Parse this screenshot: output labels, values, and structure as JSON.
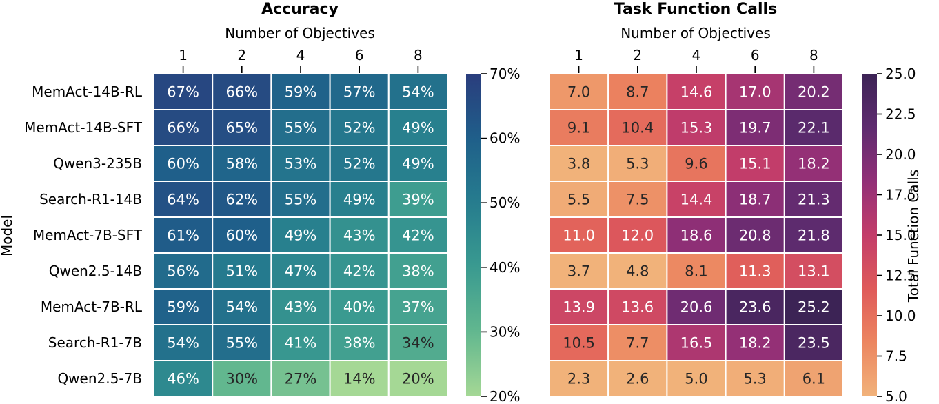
{
  "chart_data": [
    {
      "type": "heatmap",
      "title": "Accuracy",
      "xlabel": "Number of Objectives",
      "ylabel": "Model",
      "x": [
        "1",
        "2",
        "4",
        "6",
        "8"
      ],
      "rows": [
        "MemAct-14B-RL",
        "MemAct-14B-SFT",
        "Qwen3-235B",
        "Search-R1-14B",
        "MemAct-7B-SFT",
        "Qwen2.5-14B",
        "MemAct-7B-RL",
        "Search-R1-7B",
        "Qwen2.5-7B"
      ],
      "values": [
        [
          67,
          66,
          59,
          57,
          54
        ],
        [
          66,
          65,
          55,
          52,
          49
        ],
        [
          60,
          58,
          53,
          52,
          49
        ],
        [
          64,
          62,
          55,
          49,
          39
        ],
        [
          61,
          60,
          49,
          43,
          42
        ],
        [
          56,
          51,
          47,
          42,
          38
        ],
        [
          59,
          54,
          43,
          40,
          37
        ],
        [
          54,
          55,
          41,
          38,
          34
        ],
        [
          46,
          30,
          27,
          14,
          20
        ]
      ],
      "cell_labels": [
        [
          "67%",
          "66%",
          "59%",
          "57%",
          "54%"
        ],
        [
          "66%",
          "65%",
          "55%",
          "52%",
          "49%"
        ],
        [
          "60%",
          "58%",
          "53%",
          "52%",
          "49%"
        ],
        [
          "64%",
          "62%",
          "55%",
          "49%",
          "39%"
        ],
        [
          "61%",
          "60%",
          "49%",
          "43%",
          "42%"
        ],
        [
          "56%",
          "51%",
          "47%",
          "42%",
          "38%"
        ],
        [
          "59%",
          "54%",
          "43%",
          "40%",
          "37%"
        ],
        [
          "54%",
          "55%",
          "41%",
          "38%",
          "34%"
        ],
        [
          "46%",
          "30%",
          "27%",
          "14%",
          "20%"
        ]
      ],
      "colormap": "crest",
      "vmin": 20,
      "vmax": 70,
      "colorbar_ticks": [
        20,
        30,
        40,
        50,
        60,
        70
      ],
      "colorbar_tick_labels": [
        "20%",
        "30%",
        "40%",
        "50%",
        "60%",
        "70%"
      ],
      "colorbar_label": ""
    },
    {
      "type": "heatmap",
      "title": "Task Function Calls",
      "xlabel": "Number of Objectives",
      "x": [
        "1",
        "2",
        "4",
        "6",
        "8"
      ],
      "values": [
        [
          7.0,
          8.7,
          14.6,
          17.0,
          20.2
        ],
        [
          9.1,
          10.4,
          15.3,
          19.7,
          22.1
        ],
        [
          3.8,
          5.3,
          9.6,
          15.1,
          18.2
        ],
        [
          5.5,
          7.5,
          14.4,
          18.7,
          21.3
        ],
        [
          11.0,
          12.0,
          18.6,
          20.8,
          21.8
        ],
        [
          3.7,
          4.8,
          8.1,
          11.3,
          13.1
        ],
        [
          13.9,
          13.6,
          20.6,
          23.6,
          25.2
        ],
        [
          10.5,
          7.7,
          16.5,
          18.2,
          23.5
        ],
        [
          2.3,
          2.6,
          5.0,
          5.3,
          6.1
        ]
      ],
      "cell_labels": [
        [
          "7.0",
          "8.7",
          "14.6",
          "17.0",
          "20.2"
        ],
        [
          "9.1",
          "10.4",
          "15.3",
          "19.7",
          "22.1"
        ],
        [
          "3.8",
          "5.3",
          "9.6",
          "15.1",
          "18.2"
        ],
        [
          "5.5",
          "7.5",
          "14.4",
          "18.7",
          "21.3"
        ],
        [
          "11.0",
          "12.0",
          "18.6",
          "20.8",
          "21.8"
        ],
        [
          "3.7",
          "4.8",
          "8.1",
          "11.3",
          "13.1"
        ],
        [
          "13.9",
          "13.6",
          "20.6",
          "23.6",
          "25.2"
        ],
        [
          "10.5",
          "7.7",
          "16.5",
          "18.2",
          "23.5"
        ],
        [
          "2.3",
          "2.6",
          "5.0",
          "5.3",
          "6.1"
        ]
      ],
      "colormap": "flare",
      "vmin": 5.0,
      "vmax": 25.0,
      "colorbar_ticks": [
        5.0,
        7.5,
        10.0,
        12.5,
        15.0,
        17.5,
        20.0,
        22.5,
        25.0
      ],
      "colorbar_tick_labels": [
        "5.0",
        "7.5",
        "10.0",
        "12.5",
        "15.0",
        "17.5",
        "20.0",
        "22.5",
        "25.0"
      ],
      "colorbar_label": "Total Function Calls"
    }
  ],
  "colors": {
    "crest": [
      "#a5d895",
      "#62b78f",
      "#3a9a90",
      "#267d8e",
      "#1f5f8a",
      "#2a3d7d"
    ],
    "flare": [
      "#f1b27a",
      "#ec8660",
      "#df5a5a",
      "#c33d6a",
      "#922f77",
      "#5e2b6f",
      "#3c2355"
    ],
    "text_light": "#ffffff",
    "text_dark": "#262626",
    "grid_line": "#ffffff"
  }
}
